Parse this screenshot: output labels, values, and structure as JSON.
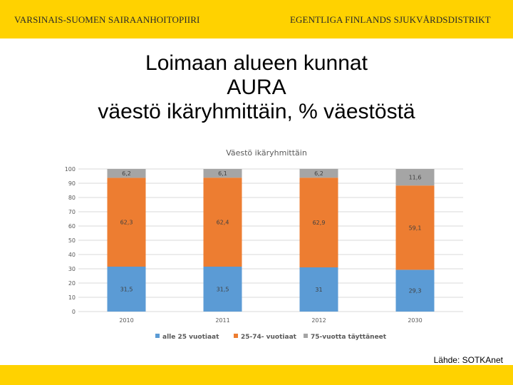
{
  "header": {
    "left": "VARSINAIS-SUOMEN SAIRAANHOITOPIIRI",
    "right": "EGENTLIGA FINLANDS SJUKVÅRDSDISTRIKT"
  },
  "title_lines": [
    "Loimaan alueen kunnat",
    "AURA",
    "väestö ikäryhmittäin, % väestöstä"
  ],
  "source": "Lähde: SOTKAnet",
  "colors": {
    "band": "#ffd200",
    "series": [
      "#5b9bd5",
      "#ed7d31",
      "#a5a5a5"
    ]
  },
  "chart_data": {
    "type": "bar",
    "stacked": true,
    "title": "Väestö ikäryhmittäin",
    "categories": [
      "2010",
      "2011",
      "2012",
      "2030"
    ],
    "series": [
      {
        "name": "alle 25 vuotiaat",
        "values": [
          31.5,
          31.5,
          31,
          29.3
        ],
        "labels": [
          "31,5",
          "31,5",
          "31",
          "29,3"
        ]
      },
      {
        "name": "25-74- vuotiaat",
        "values": [
          62.3,
          62.4,
          62.9,
          59.1
        ],
        "labels": [
          "62,3",
          "62,4",
          "62,9",
          "59,1"
        ]
      },
      {
        "name": "75-vuotta täyttäneet",
        "values": [
          6.2,
          6.1,
          6.2,
          11.6
        ],
        "labels": [
          "6,2",
          "6,1",
          "6,2",
          "11,6"
        ]
      }
    ],
    "yticks": [
      0,
      10,
      20,
      30,
      40,
      50,
      60,
      70,
      80,
      90,
      100
    ],
    "ylim": [
      0,
      100
    ],
    "grid": true,
    "legend": "bottom"
  }
}
